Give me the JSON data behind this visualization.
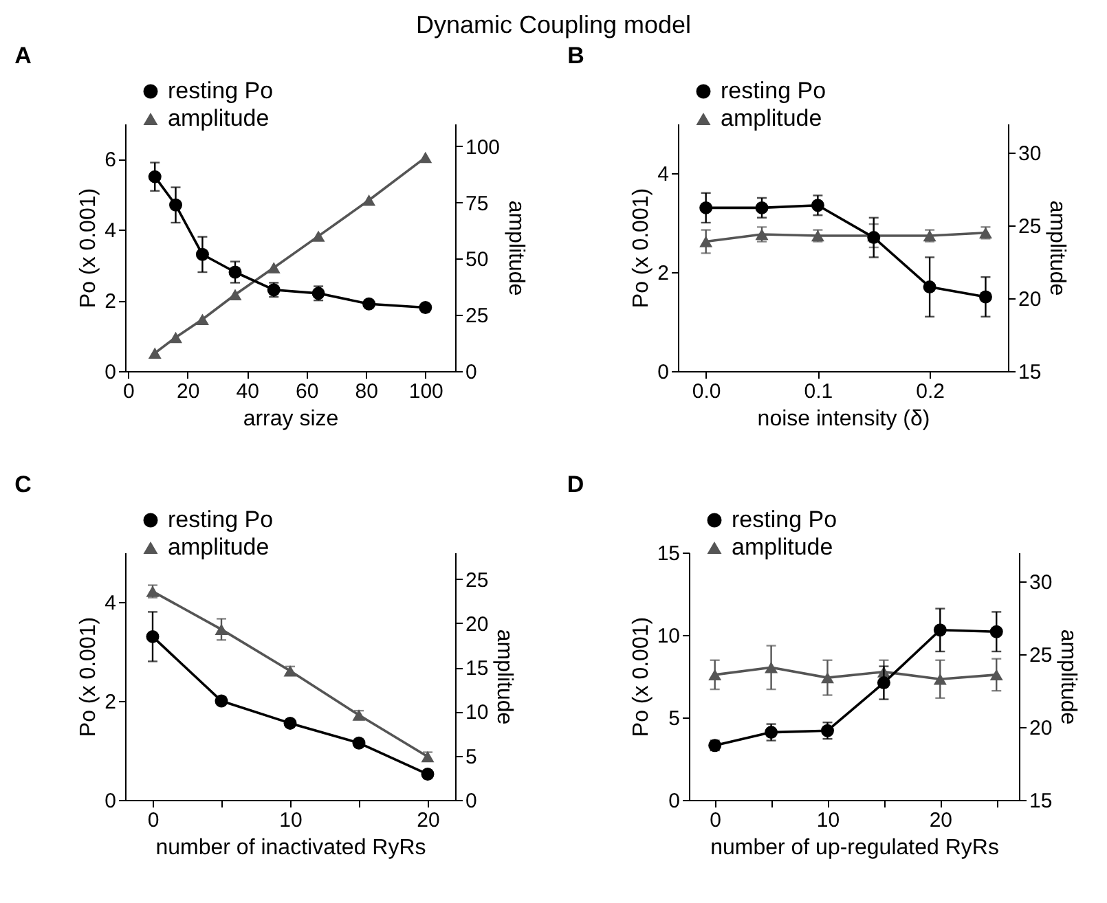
{
  "chart_data": [
    {
      "type": "other",
      "title": "Dynamic Coupling model"
    },
    {
      "type": "line",
      "title": "A",
      "xlabel": "array size",
      "ylabel": "Po (x 0.001)",
      "y2label": "amplitude",
      "legend": "top left",
      "grid": false,
      "x": [
        9,
        16,
        25,
        36,
        49,
        64,
        81,
        100
      ],
      "series": [
        {
          "name": "resting Po",
          "color": "#000000",
          "marker": "circle",
          "values": [
            5.5,
            4.7,
            3.3,
            2.8,
            2.3,
            2.2,
            1.9,
            1.8
          ],
          "errors": [
            0.4,
            0.5,
            0.5,
            0.3,
            0.2,
            0.2,
            null,
            null
          ]
        },
        {
          "name": "amplitude",
          "color": "#555555",
          "marker": "triangle",
          "axis": "y2",
          "values": [
            8,
            15,
            23,
            34,
            46,
            60,
            76,
            95
          ]
        }
      ],
      "xlim": [
        -1,
        110
      ],
      "xticks": [
        0,
        20,
        40,
        60,
        80,
        100
      ],
      "ylim": [
        0,
        7
      ],
      "yticks": [
        0,
        2,
        4,
        6
      ],
      "y2lim": [
        0,
        110
      ],
      "y2ticks": [
        0,
        25,
        50,
        75,
        100
      ]
    },
    {
      "type": "line",
      "title": "B",
      "xlabel": "noise intensity (δ)",
      "ylabel": "Po (x 0.001)",
      "y2label": "amplitude",
      "legend": "top left",
      "grid": false,
      "x": [
        0,
        0.05,
        0.1,
        0.15,
        0.2,
        0.25
      ],
      "series": [
        {
          "name": "resting Po",
          "color": "#000000",
          "marker": "circle",
          "values": [
            3.3,
            3.3,
            3.35,
            2.7,
            1.7,
            1.5
          ],
          "errors": [
            0.3,
            0.2,
            0.2,
            0.4,
            0.6,
            0.4
          ]
        },
        {
          "name": "amplitude",
          "color": "#555555",
          "marker": "triangle",
          "axis": "y2",
          "values": [
            23.9,
            24.4,
            24.3,
            24.3,
            24.3,
            24.5
          ],
          "errors": [
            0.8,
            0.5,
            0.4,
            0.8,
            0.4,
            0.4
          ]
        }
      ],
      "xlim": [
        -0.025,
        0.27
      ],
      "xticks": [
        {
          "value": 0,
          "label": "0.0"
        },
        {
          "value": 0.1,
          "label": "0.1"
        },
        {
          "value": 0.2,
          "label": "0.2"
        }
      ],
      "ylim": [
        0,
        5
      ],
      "yticks": [
        0,
        2,
        4
      ],
      "y2lim": [
        15,
        32
      ],
      "y2ticks": [
        15,
        20,
        25,
        30
      ]
    },
    {
      "type": "line",
      "title": "C",
      "xlabel": "number of inactivated RyRs",
      "ylabel": "Po (x 0.001)",
      "y2label": "amplitude",
      "legend": "top left",
      "grid": false,
      "x": [
        0,
        5,
        10,
        15,
        20
      ],
      "series": [
        {
          "name": "resting Po",
          "color": "#000000",
          "marker": "circle",
          "values": [
            3.3,
            2.0,
            1.55,
            1.15,
            0.52
          ],
          "errors": [
            0.5,
            null,
            null,
            null,
            null
          ]
        },
        {
          "name": "amplitude",
          "color": "#555555",
          "marker": "triangle",
          "axis": "y2",
          "values": [
            23.6,
            19.3,
            14.6,
            9.6,
            4.9
          ],
          "errors": [
            0.7,
            1.2,
            0.5,
            0.5,
            0.5
          ]
        }
      ],
      "xlim": [
        -2,
        22
      ],
      "xticks": [
        0,
        {
          "value": 5,
          "label": null
        },
        10,
        {
          "value": 15,
          "label": null
        },
        20
      ],
      "ylim": [
        0,
        5
      ],
      "yticks": [
        0,
        2,
        4
      ],
      "y2lim": [
        0,
        28
      ],
      "y2ticks": [
        0,
        5,
        10,
        15,
        20,
        25
      ]
    },
    {
      "type": "line",
      "title": "D",
      "xlabel": "number of up-regulated RyRs",
      "ylabel": "Po (x 0.001)",
      "y2label": "amplitude",
      "legend": "top left",
      "grid": false,
      "x": [
        0,
        5,
        10,
        15,
        20,
        25
      ],
      "series": [
        {
          "name": "resting Po",
          "color": "#000000",
          "marker": "circle",
          "values": [
            3.3,
            4.1,
            4.2,
            7.1,
            10.3,
            10.2
          ],
          "errors": [
            0.3,
            0.5,
            0.5,
            1.0,
            1.3,
            1.2
          ]
        },
        {
          "name": "amplitude",
          "color": "#555555",
          "marker": "triangle",
          "axis": "y2",
          "values": [
            23.6,
            24.1,
            23.4,
            23.8,
            23.3,
            23.6
          ],
          "errors": [
            1.0,
            1.5,
            1.2,
            0.8,
            1.3,
            1.1
          ]
        }
      ],
      "xlim": [
        -2.3,
        27
      ],
      "xticks": [
        0,
        {
          "value": 5,
          "label": null
        },
        10,
        {
          "value": 15,
          "label": null
        },
        20,
        {
          "value": 25,
          "label": null
        }
      ],
      "ylim": [
        0,
        15
      ],
      "yticks": [
        0,
        5,
        10,
        15
      ],
      "y2lim": [
        15,
        32
      ],
      "y2ticks": [
        15,
        20,
        25,
        30
      ]
    }
  ]
}
